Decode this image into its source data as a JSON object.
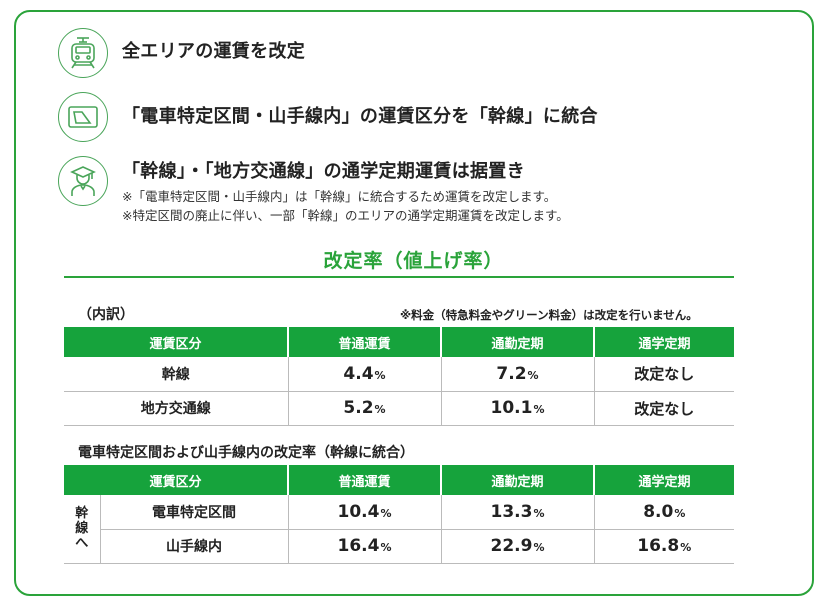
{
  "features": [
    {
      "icon": "train-icon",
      "title": "全エリアの運賃を改定"
    },
    {
      "icon": "ic-card-icon",
      "title": "「電車特定区間・山手線内」の運賃区分を「幹線」に統合"
    },
    {
      "icon": "student-icon",
      "title": "「幹線」・「地方交通線」の通学定期運賃は据置き",
      "notes": [
        "※「電車特定区間・山手線内」は「幹線」に統合するため運賃を改定します。",
        "※特定区間の廃止に伴い、一部「幹線」のエリアの通学定期運賃を改定します。"
      ]
    }
  ],
  "rate_section": {
    "title": "改定率（値上げ率）",
    "breakdown_label": "（内訳）",
    "fee_note": "※料金（特急料金やグリーン料金）は改定を行いません。",
    "headers": [
      "運賃区分",
      "普通運賃",
      "通勤定期",
      "通学定期"
    ],
    "rows": [
      {
        "label": "幹線",
        "futsu": "4.4",
        "tsukin": "7.2",
        "tsugaku": "改定なし"
      },
      {
        "label": "地方交通線",
        "futsu": "5.2",
        "tsukin": "10.1",
        "tsugaku": "改定なし"
      }
    ],
    "percent_unit": "%"
  },
  "special_section": {
    "title": "電車特定区間および山手線内の改定率（幹線に統合）",
    "headers": [
      "運賃区分",
      "普通運賃",
      "通勤定期",
      "通学定期"
    ],
    "group_label": [
      "幹",
      "線",
      "へ"
    ],
    "rows": [
      {
        "label": "電車特定区間",
        "futsu": "10.4",
        "tsukin": "13.3",
        "tsugaku": "8.0"
      },
      {
        "label": "山手線内",
        "futsu": "16.4",
        "tsukin": "22.9",
        "tsugaku": "16.8"
      }
    ]
  },
  "colors": {
    "accent": "#16a33c",
    "border": "#2aa33a"
  }
}
